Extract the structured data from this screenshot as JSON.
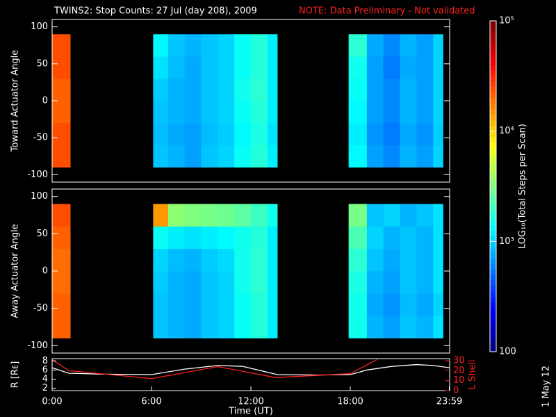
{
  "chart_data": [
    {
      "type": "heatmap",
      "title": "TWINS2: Stop Counts: 27 Jul (day 208), 2009",
      "note": "NOTE: Data Preliminary - Not validated",
      "ylabel": "Toward Actuator Angle",
      "xlim": [
        0,
        24
      ],
      "ylim": [
        -110,
        110
      ],
      "yticks": [
        -100,
        -50,
        0,
        50,
        100
      ],
      "xbins": [
        0,
        1.1,
        6.1,
        7,
        8,
        9,
        10,
        11,
        12,
        13,
        13.6,
        17.9,
        19,
        20,
        21,
        22,
        23,
        23.6
      ],
      "ybins": [
        -90,
        -60,
        -30,
        0,
        30,
        60,
        90
      ],
      "log": true,
      "clim": [
        100,
        100000
      ],
      "colormap": "jet",
      "values": [
        [
          25000,
          null,
          900,
          800,
          700,
          900,
          1000,
          1400,
          1700,
          1200,
          null,
          1300,
          700,
          600,
          800,
          700,
          1000
        ],
        [
          25000,
          null,
          850,
          750,
          700,
          850,
          950,
          1300,
          1600,
          1100,
          null,
          1200,
          650,
          550,
          750,
          650,
          950
        ],
        [
          22000,
          null,
          900,
          800,
          750,
          900,
          1000,
          1400,
          1700,
          1200,
          null,
          1300,
          700,
          600,
          800,
          700,
          1000
        ],
        [
          22000,
          null,
          950,
          800,
          750,
          900,
          1000,
          1500,
          1800,
          1200,
          null,
          1400,
          700,
          600,
          800,
          700,
          1000
        ],
        [
          25000,
          null,
          1100,
          850,
          750,
          900,
          1000,
          1400,
          1700,
          1200,
          null,
          1500,
          700,
          550,
          750,
          700,
          1000
        ],
        [
          25000,
          null,
          1300,
          900,
          800,
          900,
          1000,
          1400,
          1700,
          1200,
          null,
          1800,
          750,
          600,
          800,
          700,
          1000
        ]
      ]
    },
    {
      "type": "heatmap",
      "ylabel": "Away Actuator Angle",
      "xlim": [
        0,
        24
      ],
      "ylim": [
        -110,
        110
      ],
      "yticks": [
        -100,
        -50,
        0,
        50,
        100
      ],
      "xbins": [
        0,
        1.1,
        6.1,
        7,
        8,
        9,
        10,
        11,
        12,
        13,
        13.6,
        17.9,
        19,
        20,
        21,
        22,
        23,
        23.6
      ],
      "ybins": [
        -90,
        -60,
        -30,
        0,
        30,
        60,
        90
      ],
      "log": true,
      "clim": [
        100,
        100000
      ],
      "colormap": "jet",
      "values": [
        [
          22000,
          null,
          900,
          800,
          750,
          900,
          1000,
          1400,
          1700,
          1200,
          null,
          1500,
          800,
          700,
          900,
          800,
          1100
        ],
        [
          22000,
          null,
          900,
          800,
          750,
          900,
          1000,
          1400,
          1700,
          1200,
          null,
          1500,
          750,
          650,
          850,
          750,
          1000
        ],
        [
          20000,
          null,
          950,
          800,
          750,
          900,
          1000,
          1500,
          1800,
          1200,
          null,
          1600,
          800,
          700,
          900,
          800,
          1100
        ],
        [
          20000,
          null,
          1000,
          850,
          800,
          950,
          1050,
          1500,
          1800,
          1200,
          null,
          1800,
          900,
          750,
          900,
          800,
          1100
        ],
        [
          22000,
          null,
          1400,
          1200,
          1100,
          1200,
          1300,
          1500,
          1700,
          1200,
          null,
          2200,
          1000,
          800,
          900,
          800,
          1100
        ],
        [
          25000,
          null,
          15000,
          3500,
          3200,
          3000,
          2800,
          2500,
          2000,
          1500,
          null,
          3000,
          900,
          1000,
          800,
          900,
          1100
        ]
      ]
    },
    {
      "type": "colorbar",
      "label": "LOG₁₀(Total Steps per Scan)",
      "clim": [
        100,
        100000
      ],
      "log": true,
      "colormap": "jet",
      "ticks": [
        {
          "value": 100,
          "label": "100"
        },
        {
          "value": 1000,
          "label": "10³"
        },
        {
          "value": 10000,
          "label": "10⁴"
        },
        {
          "value": 100000,
          "label": "10⁵"
        }
      ]
    },
    {
      "type": "line",
      "ylabel": "R [Rᴇ]",
      "y2label": "L Shell",
      "xlabel": "Time (UT)",
      "xlim": [
        0,
        24
      ],
      "xticks": [
        {
          "value": 0,
          "label": "0:00"
        },
        {
          "value": 6,
          "label": "6:00"
        },
        {
          "value": 12,
          "label": "12:00"
        },
        {
          "value": 18,
          "label": "18:00"
        },
        {
          "value": 23.98,
          "label": "23:59"
        }
      ],
      "ylim": [
        1.5,
        8.5
      ],
      "yticks": [
        2,
        4,
        6,
        8
      ],
      "y2lim": [
        0,
        32
      ],
      "y2ticks": [
        0,
        10,
        20,
        30
      ],
      "annotation": "1 May 12",
      "series": [
        {
          "name": "R",
          "color": "#ffffff",
          "x": [
            0,
            1,
            3,
            6,
            8,
            10,
            11.5,
            13.6,
            16,
            18,
            19,
            20.5,
            22,
            23,
            24
          ],
          "values": [
            6.5,
            5.3,
            5.1,
            5.0,
            6.2,
            7.0,
            6.8,
            5.0,
            4.9,
            5.0,
            6.0,
            6.8,
            7.2,
            7.0,
            6.5
          ]
        },
        {
          "name": "L Shell",
          "color": "#ff2020",
          "axis": "y2",
          "x": [
            0,
            1,
            6,
            10,
            13.5,
            18,
            19.6
          ],
          "values": [
            31,
            20,
            12,
            24,
            13,
            17,
            31
          ]
        }
      ]
    }
  ]
}
